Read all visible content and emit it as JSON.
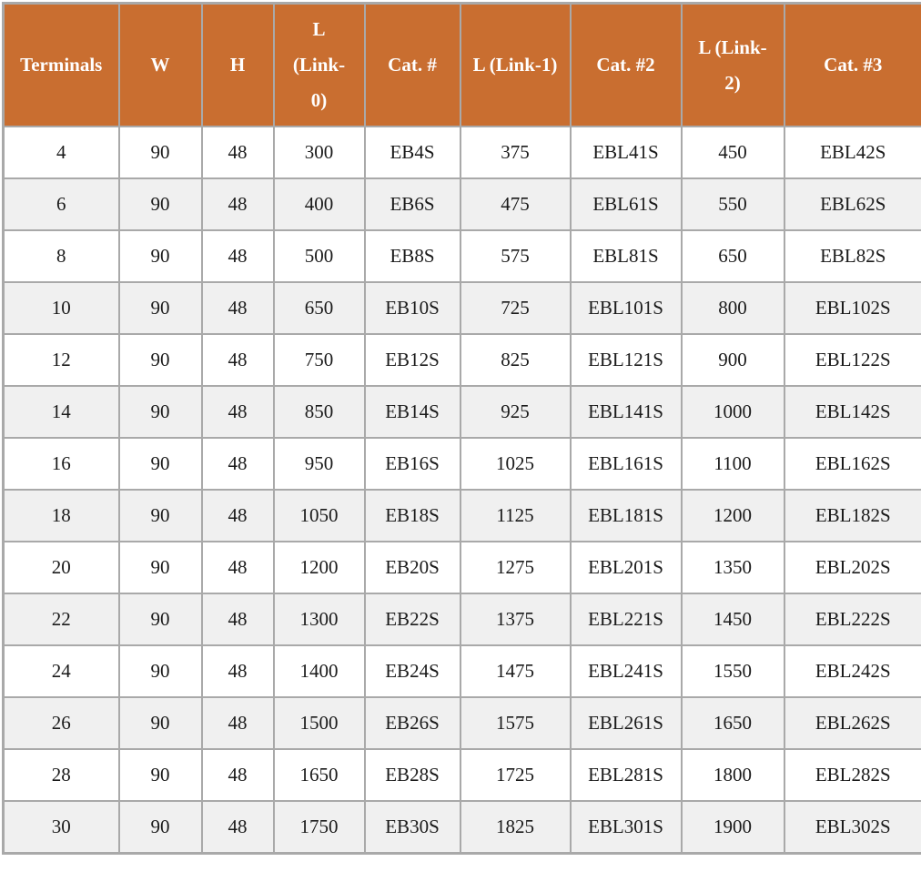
{
  "table": {
    "name": "terminal-block-spec-table",
    "columns": [
      "Terminals",
      "W",
      "H",
      "L (Link-0)",
      "Cat. #",
      "L (Link-1)",
      "Cat. #2",
      "L (Link-2)",
      "Cat. #3"
    ],
    "rows": [
      [
        "4",
        "90",
        "48",
        "300",
        "EB4S",
        "375",
        "EBL41S",
        "450",
        "EBL42S"
      ],
      [
        "6",
        "90",
        "48",
        "400",
        "EB6S",
        "475",
        "EBL61S",
        "550",
        "EBL62S"
      ],
      [
        "8",
        "90",
        "48",
        "500",
        "EB8S",
        "575",
        "EBL81S",
        "650",
        "EBL82S"
      ],
      [
        "10",
        "90",
        "48",
        "650",
        "EB10S",
        "725",
        "EBL101S",
        "800",
        "EBL102S"
      ],
      [
        "12",
        "90",
        "48",
        "750",
        "EB12S",
        "825",
        "EBL121S",
        "900",
        "EBL122S"
      ],
      [
        "14",
        "90",
        "48",
        "850",
        "EB14S",
        "925",
        "EBL141S",
        "1000",
        "EBL142S"
      ],
      [
        "16",
        "90",
        "48",
        "950",
        "EB16S",
        "1025",
        "EBL161S",
        "1100",
        "EBL162S"
      ],
      [
        "18",
        "90",
        "48",
        "1050",
        "EB18S",
        "1125",
        "EBL181S",
        "1200",
        "EBL182S"
      ],
      [
        "20",
        "90",
        "48",
        "1200",
        "EB20S",
        "1275",
        "EBL201S",
        "1350",
        "EBL202S"
      ],
      [
        "22",
        "90",
        "48",
        "1300",
        "EB22S",
        "1375",
        "EBL221S",
        "1450",
        "EBL222S"
      ],
      [
        "24",
        "90",
        "48",
        "1400",
        "EB24S",
        "1475",
        "EBL241S",
        "1550",
        "EBL242S"
      ],
      [
        "26",
        "90",
        "48",
        "1500",
        "EB26S",
        "1575",
        "EBL261S",
        "1650",
        "EBL262S"
      ],
      [
        "28",
        "90",
        "48",
        "1650",
        "EB28S",
        "1725",
        "EBL281S",
        "1800",
        "EBL282S"
      ],
      [
        "30",
        "90",
        "48",
        "1750",
        "EB30S",
        "1825",
        "EBL301S",
        "1900",
        "EBL302S"
      ]
    ],
    "colors": {
      "header_bg": "#c96e30",
      "header_text": "#ffffff",
      "border": "#a9a9a9",
      "row_bg": "#ffffff",
      "row_alt_bg": "#f0f0f0",
      "body_text": "#1a1a1a"
    }
  }
}
